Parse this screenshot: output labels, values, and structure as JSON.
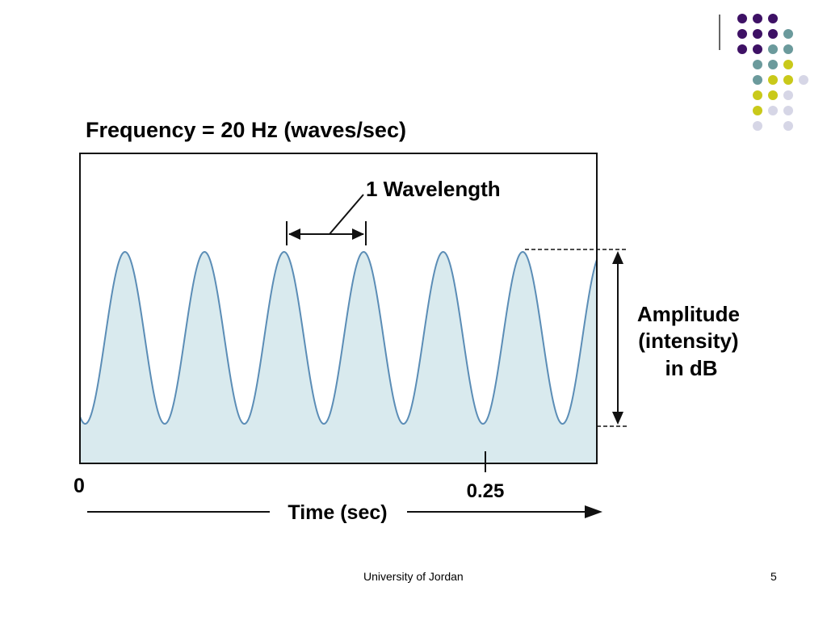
{
  "slide": {
    "title": "Frequency = 20 Hz (waves/sec)",
    "wavelength_label": "1 Wavelength",
    "amplitude_label_lines": [
      "Amplitude",
      "(intensity)",
      "in dB"
    ],
    "axis": {
      "origin_label": "0",
      "tick_label": "0.25",
      "axis_label": "Time (sec)"
    },
    "wave": {
      "frequency_hz": 20,
      "cycles_shown": 6,
      "line_color": "#5b8db6",
      "fill_color": "#d9eaee"
    }
  },
  "footer": {
    "institution": "University of Jordan",
    "page_number": "5"
  },
  "decor": {
    "dot_colors": {
      "purple": "#3e1165",
      "teal": "#6b9a9c",
      "yellow": "#c9c91a",
      "lavender": "#d6d6e6"
    }
  }
}
